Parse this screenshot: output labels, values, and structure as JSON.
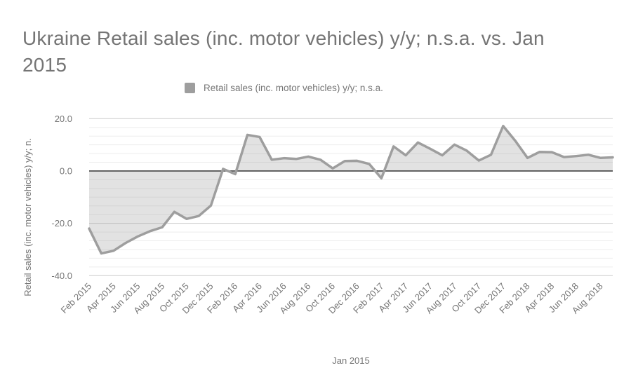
{
  "title": "Ukraine Retail sales (inc. motor vehicles) y/y; n.s.a. vs. Jan\n2015",
  "legend": {
    "label": "Retail sales (inc. motor vehicles) y/y; n.s.a.",
    "swatch_color": "#9e9e9e"
  },
  "chart_data": {
    "type": "area",
    "title": "Ukraine Retail sales (inc. motor vehicles) y/y; n.s.a. vs. Jan 2015",
    "series_name": "Retail sales (inc. motor vehicles) y/y; n.s.a.",
    "xlabel": "Jan 2015",
    "ylabel": "Retail sales (inc. motor vehicles) y/y; n.",
    "categories": [
      "Feb 2015",
      "Mar 2015",
      "Apr 2015",
      "May 2015",
      "Jun 2015",
      "Jul 2015",
      "Aug 2015",
      "Sep 2015",
      "Oct 2015",
      "Nov 2015",
      "Dec 2015",
      "Jan 2016",
      "Feb 2016",
      "Mar 2016",
      "Apr 2016",
      "May 2016",
      "Jun 2016",
      "Jul 2016",
      "Aug 2016",
      "Sep 2016",
      "Oct 2016",
      "Nov 2016",
      "Dec 2016",
      "Jan 2017",
      "Feb 2017",
      "Mar 2017",
      "Apr 2017",
      "May 2017",
      "Jun 2017",
      "Jul 2017",
      "Aug 2017",
      "Sep 2017",
      "Oct 2017",
      "Nov 2017",
      "Dec 2017",
      "Jan 2018",
      "Feb 2018",
      "Mar 2018",
      "Apr 2018",
      "May 2018",
      "Jun 2018",
      "Jul 2018",
      "Aug 2018",
      "Sep 2018"
    ],
    "values": [
      -22,
      -31.5,
      -30.5,
      -27.5,
      -25,
      -23,
      -21.5,
      -15.6,
      -18.3,
      -17.2,
      -13.2,
      0.8,
      -1.2,
      13.8,
      13.0,
      4.3,
      4.9,
      4.6,
      5.5,
      4.3,
      1.0,
      3.8,
      3.9,
      2.7,
      -2.8,
      9.4,
      6.0,
      10.9,
      8.5,
      6.0,
      10.1,
      7.8,
      4.0,
      6.2,
      17.2,
      11.5,
      5.0,
      7.3,
      7.2,
      5.3,
      5.7,
      6.2,
      5.0,
      5.2
    ],
    "x_tick_labels": [
      "Feb 2015",
      "Apr 2015",
      "Jun 2015",
      "Aug 2015",
      "Oct 2015",
      "Dec 2015",
      "Feb 2016",
      "Apr 2016",
      "Jun 2016",
      "Aug 2016",
      "Oct 2016",
      "Dec 2016",
      "Feb 2017",
      "Apr 2017",
      "Jun 2017",
      "Aug 2017",
      "Oct 2017",
      "Dec 2017",
      "Feb 2018",
      "Apr 2018",
      "Jun 2018",
      "Aug 2018"
    ],
    "y_ticks": [
      20,
      0,
      -20,
      -40
    ],
    "y_tick_labels": [
      "20.0",
      "0.0",
      "-20.0",
      "-40.0"
    ],
    "ylim": [
      -40,
      20
    ],
    "grid": "horizontal only; 5 light minor lines between each labeled line",
    "legend_position": "top",
    "baseline": 0,
    "colors": {
      "line": "#9e9e9e",
      "fill": "rgba(158,158,158,0.3)",
      "zero_line": "#424242",
      "major_grid": "#cccccc",
      "minor_grid": "#ededed",
      "text": "#757575"
    }
  }
}
